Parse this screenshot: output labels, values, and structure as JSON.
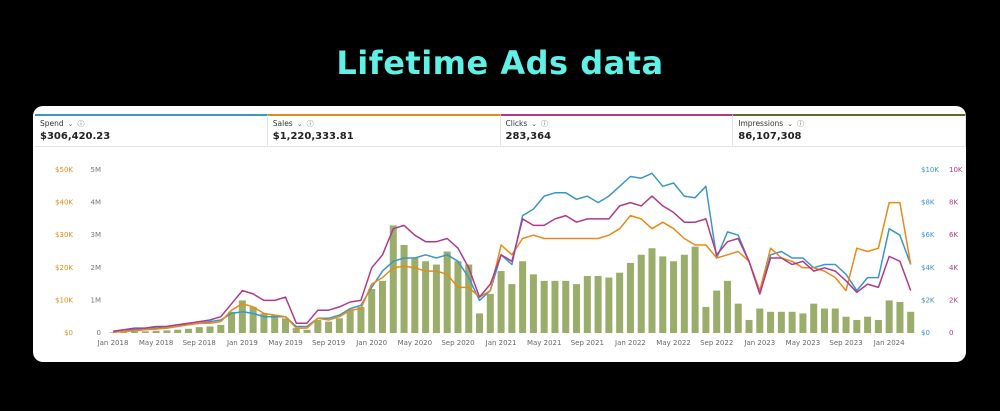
{
  "title": "Lifetime Ads data",
  "metrics": [
    {
      "label": "Spend",
      "value": "$306,420.23",
      "color": "#3b96c8"
    },
    {
      "label": "Sales",
      "value": "$1,220,333.81",
      "color": "#e88a1a"
    },
    {
      "label": "Clicks",
      "value": "283,364",
      "color": "#b03a8a"
    },
    {
      "label": "Impressions",
      "value": "86,107,308",
      "color": "#5d6b2e"
    }
  ],
  "chart_data": {
    "type": "combo",
    "categories": [
      "Jan 2018",
      null,
      null,
      null,
      "May 2018",
      null,
      null,
      null,
      "Sep 2018",
      null,
      null,
      null,
      "Jan 2019",
      null,
      null,
      null,
      "May 2019",
      null,
      null,
      null,
      "Sep 2019",
      null,
      null,
      null,
      "Jan 2020",
      null,
      null,
      null,
      "May 2020",
      null,
      null,
      null,
      "Sep 2020",
      null,
      null,
      null,
      "Jan 2021",
      null,
      null,
      null,
      "May 2021",
      null,
      null,
      null,
      "Sep 2021",
      null,
      null,
      null,
      "Jan 2022",
      null,
      null,
      null,
      "May 2022",
      null,
      null,
      null,
      "Sep 2022",
      null,
      null,
      null,
      "Jan 2023",
      null,
      null,
      null,
      "May 2023",
      null,
      null,
      null,
      "Sep 2023",
      null,
      null,
      null,
      "Jan 2024",
      null,
      null
    ],
    "ylim": [
      0,
      5000000
    ],
    "yticks": [
      {
        "value": 0,
        "label": "0"
      },
      {
        "value": 1000000,
        "label": "1M"
      },
      {
        "value": 2000000,
        "label": "2M"
      },
      {
        "value": 3000000,
        "label": "3M"
      },
      {
        "value": 4000000,
        "label": "4M"
      },
      {
        "value": 5000000,
        "label": "5M"
      }
    ],
    "y2lim": [
      0,
      10000
    ],
    "y2ticks": [
      {
        "value": 0,
        "label": "$0"
      },
      {
        "value": 2000,
        "label": "$2K"
      },
      {
        "value": 4000,
        "label": "$4K"
      },
      {
        "value": 6000,
        "label": "$6K"
      },
      {
        "value": 8000,
        "label": "$8K"
      },
      {
        "value": 10000,
        "label": "$10K"
      }
    ],
    "y3lim": [
      0,
      50000
    ],
    "y3ticks": [
      {
        "value": 0,
        "label": "$0"
      },
      {
        "value": 10000,
        "label": "$10K"
      },
      {
        "value": 20000,
        "label": "$20K"
      },
      {
        "value": 30000,
        "label": "$30K"
      },
      {
        "value": 40000,
        "label": "$40K"
      },
      {
        "value": 50000,
        "label": "$50K"
      }
    ],
    "y4lim": [
      0,
      10000
    ],
    "y4ticks": [
      0,
      {
        "value": 2000,
        "label": "2K"
      },
      {
        "value": 4000,
        "label": "4K"
      },
      {
        "value": 6000,
        "label": "6K"
      },
      {
        "value": 8000,
        "label": "8K"
      },
      {
        "value": 10000,
        "label": "10K"
      }
    ],
    "series": [
      {
        "name": "Impressions",
        "type": "bar",
        "axis": "y",
        "color": "#9aad6a",
        "values": [
          20000,
          30000,
          50000,
          50000,
          70000,
          80000,
          100000,
          130000,
          180000,
          200000,
          250000,
          650000,
          1000000,
          800000,
          600000,
          550000,
          450000,
          150000,
          100000,
          400000,
          350000,
          450000,
          700000,
          800000,
          1350000,
          1600000,
          3300000,
          2700000,
          2300000,
          2200000,
          2100000,
          2500000,
          2200000,
          2100000,
          600000,
          1200000,
          1900000,
          1500000,
          2200000,
          1800000,
          1600000,
          1600000,
          1600000,
          1500000,
          1750000,
          1750000,
          1700000,
          1850000,
          2150000,
          2400000,
          2600000,
          2350000,
          2200000,
          2400000,
          2650000,
          800000,
          1300000,
          1600000,
          900000,
          400000,
          750000,
          650000,
          650000,
          650000,
          600000,
          900000,
          750000,
          750000,
          500000,
          400000,
          500000,
          400000,
          1000000,
          950000,
          650000
        ]
      },
      {
        "name": "Spend",
        "type": "line",
        "axis": "y2",
        "color": "#3b96c8",
        "values": [
          100,
          200,
          200,
          300,
          300,
          400,
          500,
          500,
          600,
          700,
          800,
          1200,
          1300,
          1200,
          1000,
          1000,
          1000,
          400,
          400,
          900,
          900,
          1100,
          1500,
          1700,
          2800,
          3800,
          4400,
          4600,
          4600,
          4800,
          4600,
          4800,
          4400,
          3400,
          2000,
          2600,
          4800,
          4200,
          7200,
          7600,
          8400,
          8600,
          8600,
          8200,
          8400,
          8000,
          8400,
          9000,
          9600,
          9500,
          9800,
          9000,
          9200,
          8400,
          8300,
          9000,
          4600,
          6200,
          6000,
          4400,
          2400,
          4800,
          5000,
          4600,
          4600,
          4000,
          4200,
          4200,
          3600,
          2600,
          3400,
          3400,
          6400,
          6000,
          4200
        ]
      },
      {
        "name": "Sales",
        "type": "line",
        "axis": "y3",
        "color": "#e88a1a",
        "values": [
          200,
          500,
          700,
          1000,
          1200,
          1500,
          2000,
          2500,
          3000,
          3000,
          3500,
          7000,
          9000,
          8000,
          6000,
          5500,
          5000,
          1500,
          1500,
          4500,
          4000,
          5000,
          7000,
          7500,
          15000,
          17000,
          20000,
          20500,
          20000,
          19000,
          19000,
          18000,
          14000,
          14000,
          11000,
          13000,
          27000,
          24000,
          29000,
          30000,
          29000,
          29000,
          29000,
          29000,
          29000,
          29000,
          30000,
          32000,
          36000,
          35000,
          32000,
          34000,
          32000,
          29000,
          27000,
          27000,
          23000,
          24000,
          25000,
          22000,
          13000,
          26000,
          23000,
          22000,
          20000,
          20000,
          19000,
          17000,
          13000,
          26000,
          25000,
          26000,
          40000,
          40000,
          21000
        ]
      },
      {
        "name": "Clicks",
        "type": "line",
        "axis": "y4",
        "color": "#b03a8a",
        "values": [
          100,
          200,
          300,
          300,
          400,
          400,
          500,
          600,
          700,
          800,
          1000,
          1800,
          2600,
          2400,
          2000,
          2000,
          2200,
          600,
          600,
          1400,
          1400,
          1600,
          1900,
          2000,
          4000,
          4800,
          6400,
          6600,
          6000,
          5600,
          5600,
          5800,
          5200,
          4000,
          2200,
          3000,
          4800,
          4400,
          7000,
          6600,
          6600,
          7000,
          7200,
          6800,
          7000,
          7000,
          7000,
          7800,
          8000,
          7800,
          8400,
          7800,
          7400,
          6800,
          6800,
          7000,
          4800,
          5600,
          5800,
          4400,
          2400,
          4600,
          4600,
          4200,
          4400,
          3800,
          4000,
          3800,
          3200,
          2500,
          3000,
          2800,
          4700,
          4400,
          2600
        ]
      }
    ]
  }
}
